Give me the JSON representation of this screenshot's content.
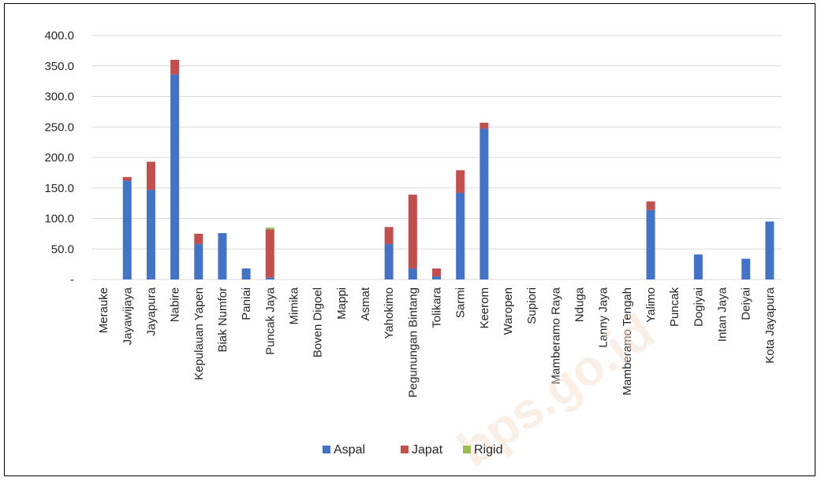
{
  "watermark": "bps.go.id",
  "chart_data": {
    "type": "bar",
    "stacked": true,
    "categories": [
      "Merauke",
      "Jayawijaya",
      "Jayapura",
      "Nabire",
      "Kepulauan Yapen",
      "Biak Numfor",
      "Paniai",
      "Puncak Jaya",
      "Mimika",
      "Boven Digoel",
      "Mappi",
      "Asmat",
      "Yahokimo",
      "Pegunungan Bintang",
      "Tolikara",
      "Sarmi",
      "Keerom",
      "Waropen",
      "Supiori",
      "Mamberamo Raya",
      "Nduga",
      "Lanny Jaya",
      "Mamberamo Tengah",
      "Yalimo",
      "Puncak",
      "Dogiyai",
      "Intan Jaya",
      "Deiyai",
      "Kota Jayapura"
    ],
    "series": [
      {
        "name": "Aspal",
        "color": "#4472C4",
        "values": [
          0,
          162,
          147,
          336,
          58,
          76,
          18,
          3,
          0,
          0,
          0,
          0,
          58,
          18,
          5,
          142,
          247,
          0,
          0,
          0,
          0,
          0,
          0,
          114,
          0,
          41,
          0,
          34,
          95
        ]
      },
      {
        "name": "Japat",
        "color": "#C0504D",
        "values": [
          0,
          6,
          46,
          24,
          17,
          0,
          0,
          79,
          0,
          0,
          0,
          0,
          28,
          121,
          13,
          37,
          10,
          0,
          0,
          0,
          0,
          0,
          0,
          14,
          0,
          0,
          0,
          0,
          0
        ]
      },
      {
        "name": "Rigid",
        "color": "#9BBB59",
        "values": [
          0,
          0,
          0,
          0,
          0,
          0,
          0,
          3,
          0,
          0,
          0,
          0,
          0,
          0,
          0,
          0,
          0,
          0,
          0,
          0,
          0,
          0,
          0,
          0,
          0,
          0,
          0,
          0,
          0
        ]
      }
    ],
    "ylim": [
      0,
      400
    ],
    "yticks": [
      0,
      50,
      100,
      150,
      200,
      250,
      300,
      350,
      400
    ],
    "ytick_labels": [
      "-",
      "50.0",
      "100.0",
      "150.0",
      "200.0",
      "250.0",
      "300.0",
      "350.0",
      "400.0"
    ],
    "grid": true,
    "legend_position": "bottom"
  }
}
